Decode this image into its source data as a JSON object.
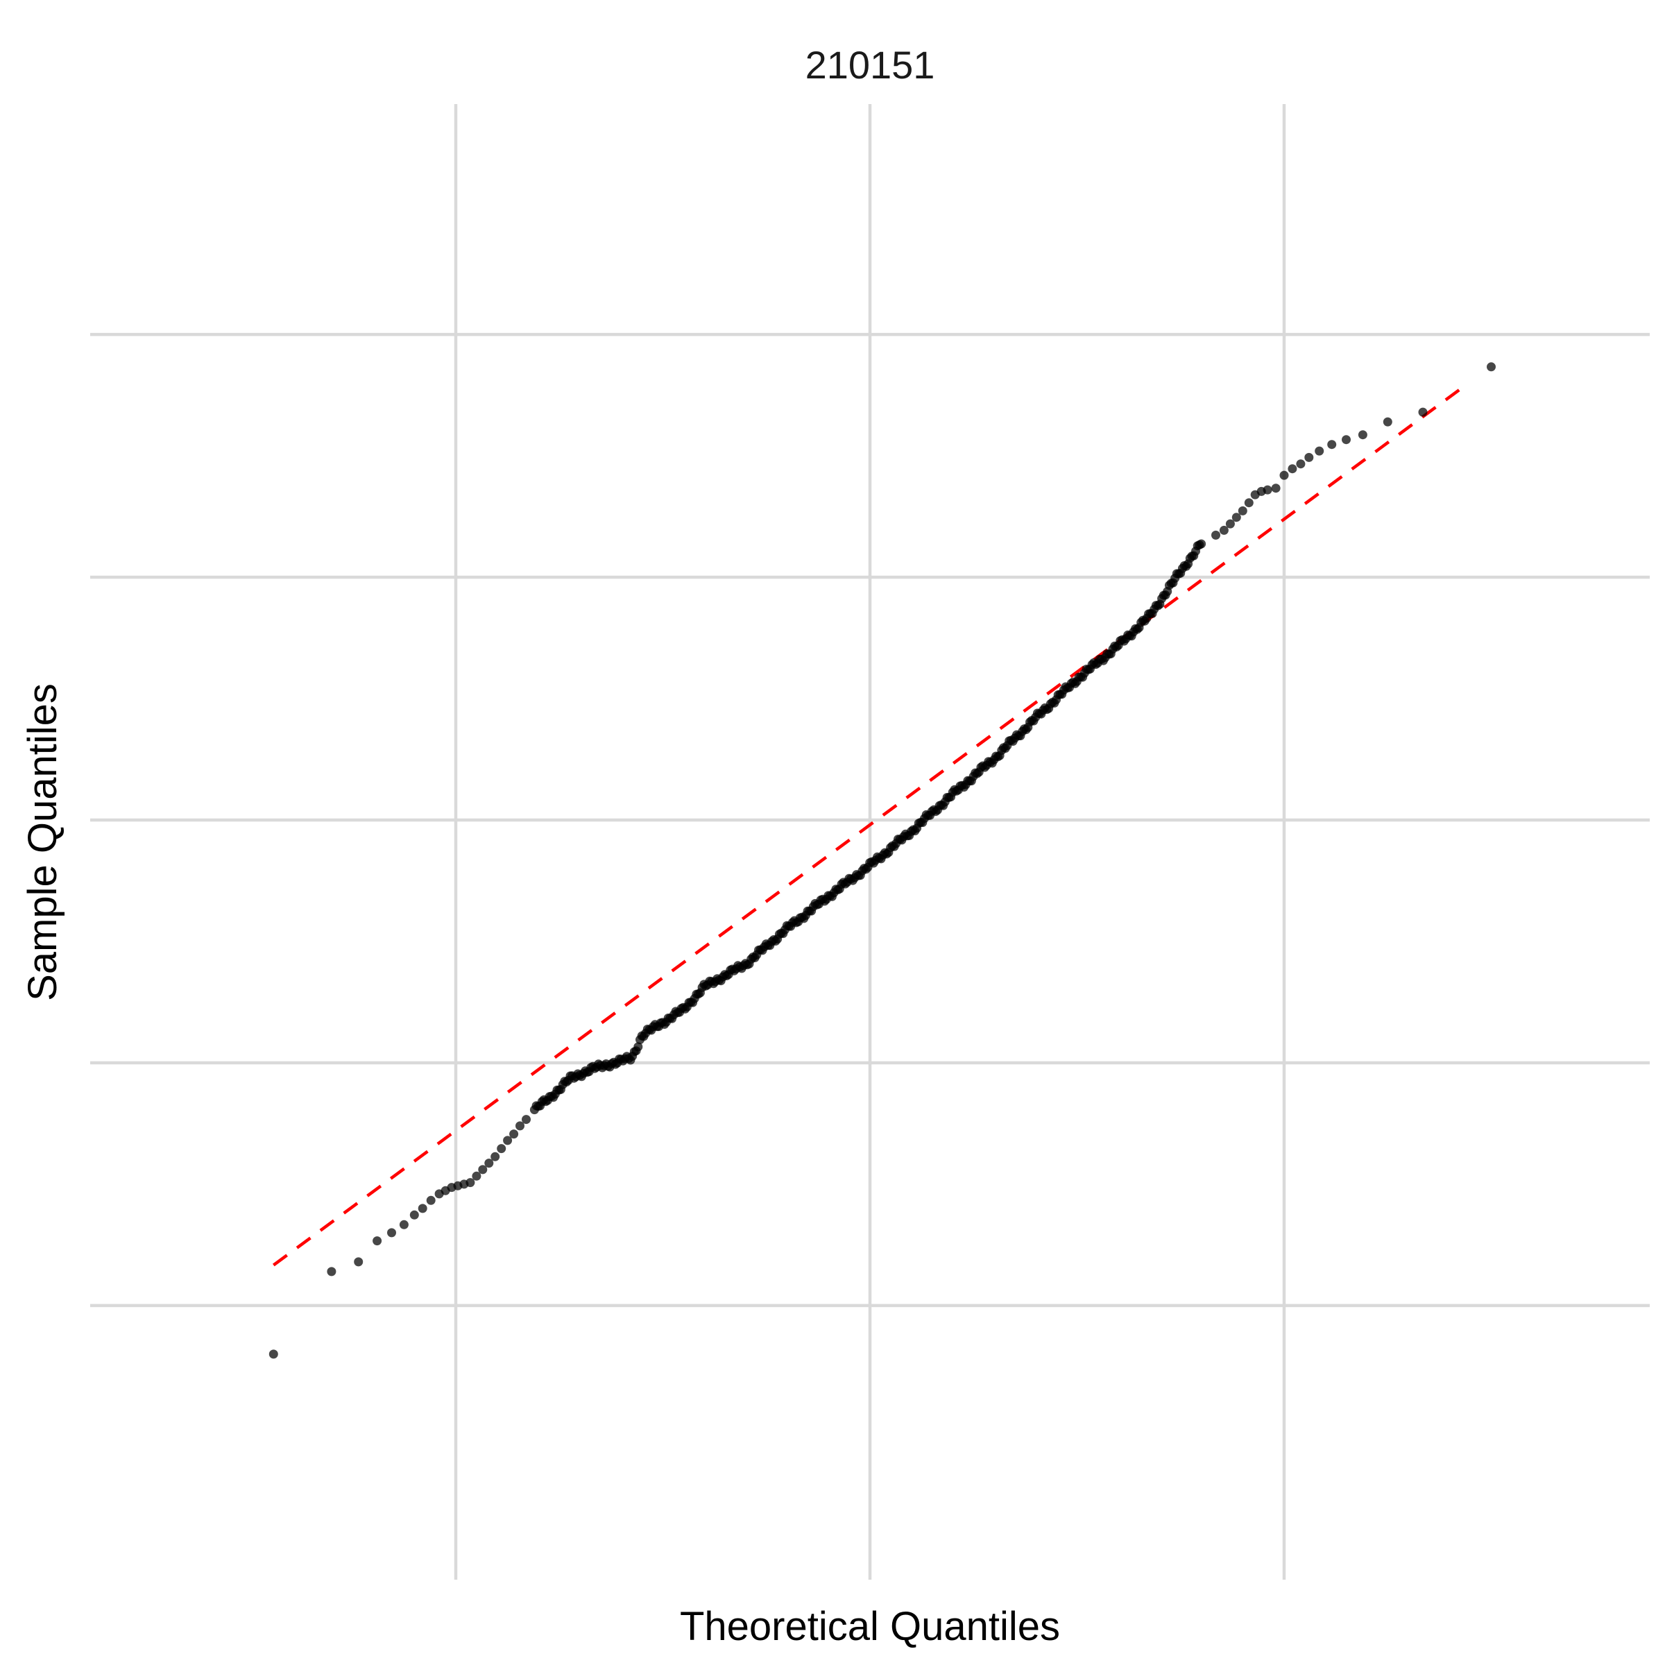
{
  "chart_data": {
    "type": "scatter",
    "title": "210151",
    "xlabel": "Theoretical Quantiles",
    "ylabel": "Sample Quantiles",
    "xlim": [
      -3.2,
      3.2
    ],
    "ylim": [
      -3.1,
      3.15
    ],
    "x_gridlines": [
      -2,
      0,
      2
    ],
    "y_gridlines": [
      -3,
      -1.5,
      0,
      1.5,
      3
    ],
    "tick_labels_shown": false,
    "legend": "none",
    "n_points": 400,
    "reference_line": {
      "style": "dashed",
      "color": "#ff0000",
      "x_start": -2.88,
      "y_start": -2.75,
      "x_end": 2.88,
      "y_end": 2.69
    },
    "points_tail_low": [
      {
        "x": -2.88,
        "y": -3.3
      },
      {
        "x": -2.6,
        "y": -2.79
      },
      {
        "x": -2.47,
        "y": -2.73
      },
      {
        "x": -2.38,
        "y": -2.6
      },
      {
        "x": -2.31,
        "y": -2.55
      },
      {
        "x": -2.25,
        "y": -2.5
      },
      {
        "x": -2.2,
        "y": -2.44
      },
      {
        "x": -2.16,
        "y": -2.4
      },
      {
        "x": -2.12,
        "y": -2.35
      },
      {
        "x": -2.08,
        "y": -2.31
      },
      {
        "x": -2.05,
        "y": -2.29
      },
      {
        "x": -2.02,
        "y": -2.27
      },
      {
        "x": -1.99,
        "y": -2.26
      },
      {
        "x": -1.96,
        "y": -2.25
      },
      {
        "x": -1.93,
        "y": -2.24
      },
      {
        "x": -1.9,
        "y": -2.2
      },
      {
        "x": -1.87,
        "y": -2.16
      },
      {
        "x": -1.84,
        "y": -2.12
      },
      {
        "x": -1.81,
        "y": -2.08
      },
      {
        "x": -1.78,
        "y": -2.03
      },
      {
        "x": -1.75,
        "y": -1.98
      },
      {
        "x": -1.72,
        "y": -1.94
      },
      {
        "x": -1.69,
        "y": -1.89
      },
      {
        "x": -1.66,
        "y": -1.85
      }
    ],
    "points_tail_high": [
      {
        "x": 1.67,
        "y": 1.76
      },
      {
        "x": 1.71,
        "y": 1.79
      },
      {
        "x": 1.74,
        "y": 1.83
      },
      {
        "x": 1.77,
        "y": 1.87
      },
      {
        "x": 1.8,
        "y": 1.91
      },
      {
        "x": 1.83,
        "y": 1.96
      },
      {
        "x": 1.86,
        "y": 2.01
      },
      {
        "x": 1.89,
        "y": 2.03
      },
      {
        "x": 1.92,
        "y": 2.04
      },
      {
        "x": 1.96,
        "y": 2.05
      },
      {
        "x": 2.0,
        "y": 2.13
      },
      {
        "x": 2.04,
        "y": 2.17
      },
      {
        "x": 2.08,
        "y": 2.2
      },
      {
        "x": 2.12,
        "y": 2.24
      },
      {
        "x": 2.17,
        "y": 2.28
      },
      {
        "x": 2.23,
        "y": 2.32
      },
      {
        "x": 2.3,
        "y": 2.35
      },
      {
        "x": 2.38,
        "y": 2.38
      },
      {
        "x": 2.5,
        "y": 2.46
      },
      {
        "x": 2.67,
        "y": 2.52
      },
      {
        "x": 3.0,
        "y": 2.8
      }
    ],
    "points_body_anchors": [
      {
        "x": -1.62,
        "y": -1.79
      },
      {
        "x": -1.55,
        "y": -1.72
      },
      {
        "x": -1.45,
        "y": -1.6
      },
      {
        "x": -1.35,
        "y": -1.54
      },
      {
        "x": -1.15,
        "y": -1.47
      },
      {
        "x": -1.1,
        "y": -1.33
      },
      {
        "x": -0.9,
        "y": -1.17
      },
      {
        "x": -0.8,
        "y": -1.03
      },
      {
        "x": -0.6,
        "y": -0.89
      },
      {
        "x": -0.4,
        "y": -0.67
      },
      {
        "x": -0.2,
        "y": -0.47
      },
      {
        "x": 0.0,
        "y": -0.28
      },
      {
        "x": 0.2,
        "y": -0.07
      },
      {
        "x": 0.4,
        "y": 0.16
      },
      {
        "x": 0.6,
        "y": 0.38
      },
      {
        "x": 0.8,
        "y": 0.63
      },
      {
        "x": 1.0,
        "y": 0.87
      },
      {
        "x": 1.2,
        "y": 1.08
      },
      {
        "x": 1.35,
        "y": 1.26
      },
      {
        "x": 1.48,
        "y": 1.5
      },
      {
        "x": 1.6,
        "y": 1.71
      }
    ],
    "body_point_count": 355
  }
}
